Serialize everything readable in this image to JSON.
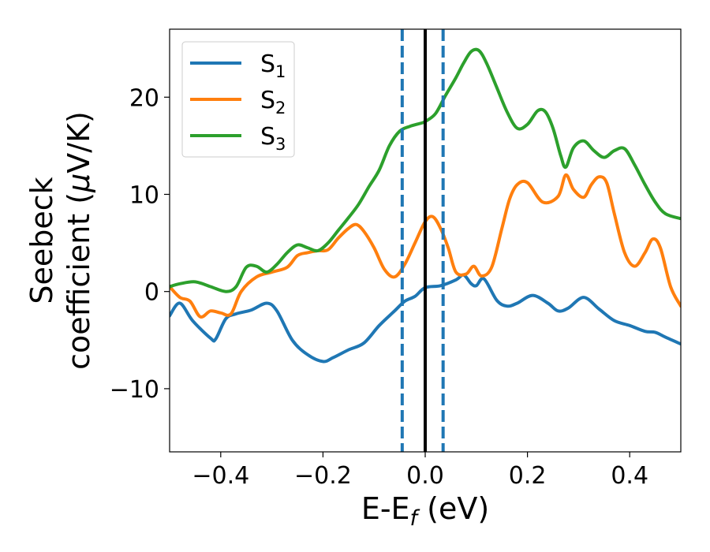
{
  "chart_data": {
    "type": "line",
    "xlabel": {
      "main": "E-E",
      "sub": "f",
      "unit": " (eV)"
    },
    "ylabel": {
      "line1": "Seebeck",
      "line2_pre": "coefficient  (",
      "line2_mu": "μ",
      "line2_post": "V/K)"
    },
    "xlim": [
      -0.5,
      0.5
    ],
    "ylim": [
      -16.5,
      27
    ],
    "xticks": [
      {
        "value": -0.4,
        "label": "−0.4"
      },
      {
        "value": -0.2,
        "label": "−0.2"
      },
      {
        "value": 0.0,
        "label": "0.0"
      },
      {
        "value": 0.2,
        "label": "0.2"
      },
      {
        "value": 0.4,
        "label": "0.4"
      }
    ],
    "yticks": [
      {
        "value": -10,
        "label": "−10"
      },
      {
        "value": 0,
        "label": "0"
      },
      {
        "value": 10,
        "label": "10"
      },
      {
        "value": 20,
        "label": "20"
      }
    ],
    "grid": false,
    "legend_position": "top-left",
    "vlines": [
      {
        "x": -0.045,
        "style": "dashed",
        "color": "#1f77b4"
      },
      {
        "x": 0.0,
        "style": "solid",
        "color": "#000000"
      },
      {
        "x": 0.035,
        "style": "dashed",
        "color": "#1f77b4"
      }
    ],
    "series": [
      {
        "name": "S",
        "subscript": "1",
        "color": "#1f77b4",
        "x": [
          -0.5,
          -0.48,
          -0.455,
          -0.42,
          -0.41,
          -0.39,
          -0.37,
          -0.34,
          -0.31,
          -0.29,
          -0.26,
          -0.23,
          -0.2,
          -0.18,
          -0.15,
          -0.12,
          -0.09,
          -0.06,
          -0.04,
          -0.02,
          0.0,
          0.03,
          0.06,
          0.075,
          0.09,
          0.1,
          0.115,
          0.14,
          0.16,
          0.18,
          0.21,
          0.24,
          0.26,
          0.28,
          0.31,
          0.34,
          0.37,
          0.4,
          0.43,
          0.45,
          0.47,
          0.5
        ],
        "y": [
          -2.5,
          -1.2,
          -3.0,
          -4.8,
          -4.9,
          -2.8,
          -2.3,
          -1.9,
          -1.2,
          -2.0,
          -5.0,
          -6.5,
          -7.2,
          -6.8,
          -6.0,
          -5.3,
          -3.5,
          -2.0,
          -1.0,
          -0.5,
          0.4,
          0.6,
          1.2,
          1.7,
          0.8,
          0.6,
          1.3,
          -0.9,
          -1.5,
          -1.2,
          -0.4,
          -1.2,
          -2.0,
          -1.7,
          -0.6,
          -1.8,
          -3.0,
          -3.5,
          -4.1,
          -4.2,
          -4.7,
          -5.4
        ]
      },
      {
        "name": "S",
        "subscript": "2",
        "color": "#ff7f0e",
        "x": [
          -0.5,
          -0.48,
          -0.46,
          -0.44,
          -0.42,
          -0.4,
          -0.38,
          -0.36,
          -0.33,
          -0.3,
          -0.27,
          -0.25,
          -0.23,
          -0.21,
          -0.19,
          -0.17,
          -0.15,
          -0.135,
          -0.12,
          -0.1,
          -0.08,
          -0.06,
          -0.04,
          -0.02,
          0.0,
          0.015,
          0.03,
          0.045,
          0.06,
          0.08,
          0.095,
          0.11,
          0.13,
          0.15,
          0.165,
          0.18,
          0.2,
          0.23,
          0.26,
          0.275,
          0.29,
          0.31,
          0.325,
          0.34,
          0.355,
          0.37,
          0.39,
          0.41,
          0.43,
          0.445,
          0.46,
          0.48,
          0.5
        ],
        "y": [
          0.5,
          -0.6,
          -1.0,
          -2.6,
          -2.0,
          -2.2,
          -2.3,
          0.0,
          1.5,
          2.0,
          2.5,
          3.7,
          4.0,
          4.2,
          4.3,
          5.5,
          6.5,
          6.9,
          6.2,
          4.5,
          2.3,
          1.5,
          2.8,
          5.0,
          7.2,
          7.7,
          6.5,
          4.5,
          2.0,
          1.8,
          2.6,
          1.6,
          2.5,
          6.5,
          9.5,
          11.0,
          11.2,
          9.2,
          9.8,
          12.0,
          10.5,
          9.7,
          11.0,
          11.8,
          11.2,
          8.0,
          4.0,
          2.6,
          4.0,
          5.4,
          4.5,
          0.5,
          -1.5
        ]
      },
      {
        "name": "S",
        "subscript": "3",
        "color": "#2ca02c",
        "x": [
          -0.5,
          -0.48,
          -0.45,
          -0.42,
          -0.39,
          -0.37,
          -0.35,
          -0.33,
          -0.31,
          -0.29,
          -0.27,
          -0.25,
          -0.23,
          -0.21,
          -0.19,
          -0.17,
          -0.15,
          -0.13,
          -0.11,
          -0.09,
          -0.07,
          -0.05,
          -0.03,
          -0.01,
          0.0,
          0.02,
          0.04,
          0.06,
          0.075,
          0.09,
          0.105,
          0.12,
          0.14,
          0.16,
          0.18,
          0.2,
          0.22,
          0.235,
          0.25,
          0.265,
          0.275,
          0.29,
          0.31,
          0.33,
          0.35,
          0.37,
          0.39,
          0.41,
          0.43,
          0.45,
          0.47,
          0.5
        ],
        "y": [
          0.5,
          0.8,
          1.0,
          0.5,
          0.0,
          0.5,
          2.5,
          2.6,
          2.0,
          2.8,
          4.0,
          4.8,
          4.5,
          4.2,
          5.0,
          6.3,
          7.6,
          9.0,
          10.8,
          12.5,
          15.0,
          16.5,
          17.0,
          17.3,
          17.5,
          18.3,
          20.2,
          22.0,
          23.5,
          24.7,
          24.8,
          23.5,
          21.0,
          18.5,
          16.8,
          17.2,
          18.6,
          18.5,
          16.8,
          14.0,
          12.8,
          14.8,
          15.5,
          14.5,
          13.8,
          14.5,
          14.7,
          13.0,
          11.0,
          9.2,
          8.0,
          7.5
        ]
      }
    ]
  }
}
